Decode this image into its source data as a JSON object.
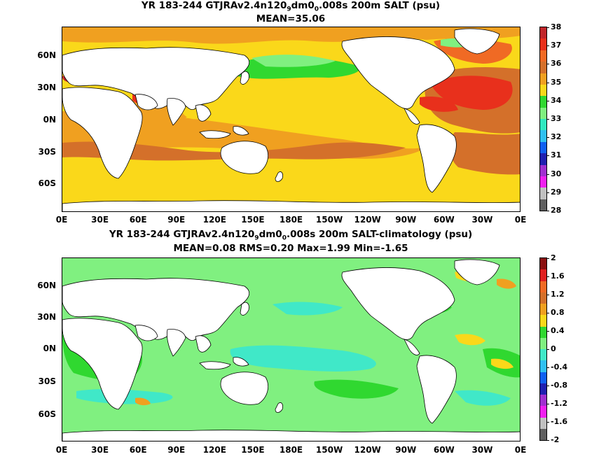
{
  "panel1": {
    "title_a": "YR 183-244 GTJRAv2.4n120",
    "title_sub1": "9",
    "title_b": "dm0",
    "title_sub2": "0",
    "title_c": ".008s 200m SALT (psu)",
    "stats": "MEAN=35.06",
    "colorbar_labels": [
      "38",
      "37",
      "36",
      "35",
      "34",
      "33",
      "32",
      "31",
      "30",
      "29",
      "28"
    ],
    "colorbar_colors": [
      "#c0262a",
      "#e8301c",
      "#f06a24",
      "#d4702a",
      "#f0a020",
      "#fad81a",
      "#30d830",
      "#80f080",
      "#30e8c0",
      "#30c0f0",
      "#1060f0",
      "#2020b0",
      "#a030d0",
      "#f020f0",
      "#c0c0c0",
      "#606060"
    ]
  },
  "panel2": {
    "title_a": "YR 183-244 GTJRAv2.4n120",
    "title_sub1": "9",
    "title_b": "dm0",
    "title_sub2": "0",
    "title_c": ".008s 200m SALT-climatology (psu)",
    "stats": "MEAN=0.08   RMS=0.20   Max=1.99   Min=-1.65",
    "colorbar_labels": [
      "2",
      "1.6",
      "1.2",
      "0.8",
      "0.4",
      "0",
      "-0.4",
      "-0.8",
      "-1.2",
      "-1.6",
      "-2"
    ],
    "colorbar_colors": [
      "#8a1010",
      "#e02020",
      "#f06a24",
      "#d4702a",
      "#f0a020",
      "#fad81a",
      "#30d830",
      "#80f080",
      "#40e8c8",
      "#30c0f0",
      "#1060f0",
      "#2020b0",
      "#a030d0",
      "#f020f0",
      "#c0c0c0",
      "#606060"
    ]
  },
  "axes": {
    "y_labels": [
      "60N",
      "30N",
      "0N",
      "30S",
      "60S"
    ],
    "x_labels": [
      "0E",
      "30E",
      "60E",
      "90E",
      "120E",
      "150E",
      "180E",
      "150W",
      "120W",
      "90W",
      "60W",
      "30W",
      "0E"
    ]
  }
}
